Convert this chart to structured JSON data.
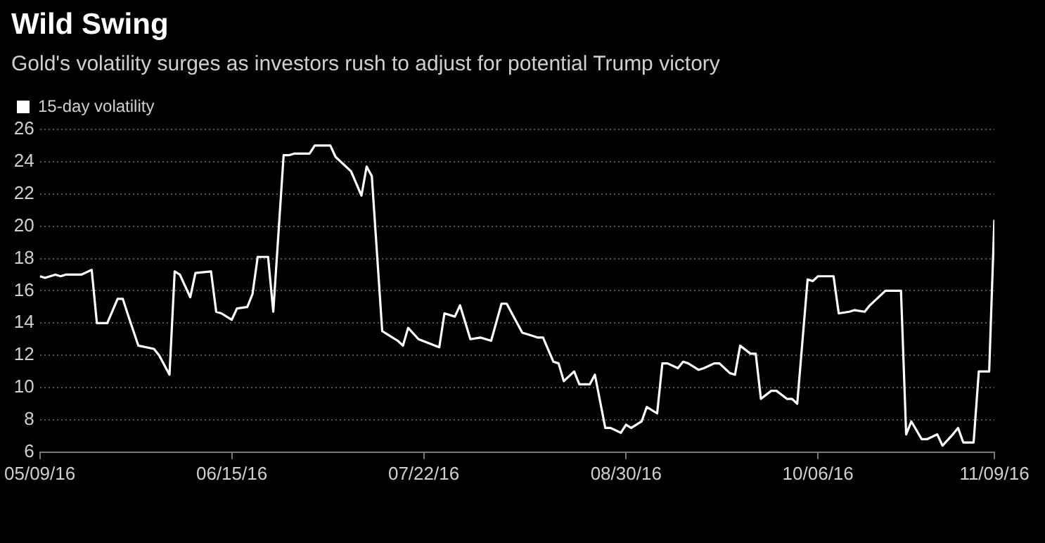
{
  "chart_data": {
    "type": "line",
    "title": "Wild Swing",
    "subtitle": "Gold's volatility surges as investors rush to adjust for potential Trump victory",
    "x": [
      "2016-05-09",
      "2016-05-10",
      "2016-05-12",
      "2016-05-13",
      "2016-05-14",
      "2016-05-17",
      "2016-05-19",
      "2016-05-20",
      "2016-05-22",
      "2016-05-24",
      "2016-05-25",
      "2016-05-26",
      "2016-05-28",
      "2016-05-31",
      "2016-06-01",
      "2016-06-03",
      "2016-06-04",
      "2016-06-05",
      "2016-06-07",
      "2016-06-08",
      "2016-06-11",
      "2016-06-12",
      "2016-06-13",
      "2016-06-15",
      "2016-06-16",
      "2016-06-18",
      "2016-06-19",
      "2016-06-20",
      "2016-06-22",
      "2016-06-23",
      "2016-06-25",
      "2016-06-26",
      "2016-06-27",
      "2016-06-30",
      "2016-07-01",
      "2016-07-04",
      "2016-07-05",
      "2016-07-08",
      "2016-07-10",
      "2016-07-11",
      "2016-07-12",
      "2016-07-14",
      "2016-07-15",
      "2016-07-17",
      "2016-07-18",
      "2016-07-19",
      "2016-07-21",
      "2016-07-25",
      "2016-07-26",
      "2016-07-28",
      "2016-07-29",
      "2016-07-31",
      "2016-08-02",
      "2016-08-04",
      "2016-08-06",
      "2016-08-07",
      "2016-08-10",
      "2016-08-11",
      "2016-08-13",
      "2016-08-14",
      "2016-08-16",
      "2016-08-17",
      "2016-08-18",
      "2016-08-20",
      "2016-08-21",
      "2016-08-23",
      "2016-08-24",
      "2016-08-26",
      "2016-08-27",
      "2016-08-29",
      "2016-08-30",
      "2016-08-31",
      "2016-09-02",
      "2016-09-03",
      "2016-09-05",
      "2016-09-06",
      "2016-09-07",
      "2016-09-09",
      "2016-09-10",
      "2016-09-11",
      "2016-09-13",
      "2016-09-14",
      "2016-09-16",
      "2016-09-17",
      "2016-09-19",
      "2016-09-20",
      "2016-09-21",
      "2016-09-23",
      "2016-09-24",
      "2016-09-25",
      "2016-09-27",
      "2016-09-28",
      "2016-09-30",
      "2016-10-01",
      "2016-10-02",
      "2016-10-04",
      "2016-10-05",
      "2016-10-06",
      "2016-10-09",
      "2016-10-10",
      "2016-10-12",
      "2016-10-13",
      "2016-10-15",
      "2016-10-16",
      "2016-10-19",
      "2016-10-22",
      "2016-10-23",
      "2016-10-24",
      "2016-10-26",
      "2016-10-27",
      "2016-10-29",
      "2016-10-30",
      "2016-11-01",
      "2016-11-02",
      "2016-11-03",
      "2016-11-05",
      "2016-11-06",
      "2016-11-08",
      "2016-11-09"
    ],
    "series": [
      {
        "name": "15-day volatility",
        "color": "#ffffff",
        "values": [
          16.9,
          16.8,
          17.0,
          16.9,
          17.0,
          17.0,
          17.3,
          14.0,
          14.0,
          15.5,
          15.5,
          14.5,
          12.6,
          12.4,
          12.0,
          10.8,
          17.2,
          17.0,
          15.6,
          17.1,
          17.2,
          14.7,
          14.6,
          14.2,
          14.9,
          15.0,
          15.8,
          18.1,
          18.1,
          14.7,
          24.4,
          24.4,
          24.5,
          24.5,
          25.0,
          25.0,
          24.3,
          23.4,
          21.9,
          23.7,
          23.1,
          13.5,
          13.3,
          12.9,
          12.6,
          13.7,
          13.0,
          12.5,
          14.6,
          14.4,
          15.1,
          13.0,
          13.1,
          12.9,
          15.2,
          15.2,
          13.4,
          13.3,
          13.1,
          13.1,
          11.6,
          11.5,
          10.4,
          11.0,
          10.2,
          10.2,
          10.8,
          7.5,
          7.5,
          7.2,
          7.7,
          7.5,
          7.9,
          8.8,
          8.4,
          11.5,
          11.5,
          11.2,
          11.6,
          11.5,
          11.1,
          11.2,
          11.5,
          11.5,
          10.9,
          10.8,
          12.6,
          12.1,
          12.1,
          9.3,
          9.8,
          9.8,
          9.3,
          9.3,
          9.0,
          16.7,
          16.6,
          16.9,
          16.9,
          14.6,
          14.7,
          14.8,
          14.7,
          15.1,
          16.0,
          16.0,
          7.1,
          7.9,
          6.8,
          6.8,
          7.1,
          6.4,
          7.1,
          7.5,
          6.6,
          6.6,
          11.0,
          11.0,
          20.4
        ]
      }
    ],
    "xlim": [
      "2016-05-09",
      "2016-11-09"
    ],
    "xticks": [
      {
        "value": "2016-05-09",
        "label": "05/09/16"
      },
      {
        "value": "2016-06-15",
        "label": "06/15/16"
      },
      {
        "value": "2016-07-22",
        "label": "07/22/16"
      },
      {
        "value": "2016-08-30",
        "label": "08/30/16"
      },
      {
        "value": "2016-10-06",
        "label": "10/06/16"
      },
      {
        "value": "2016-11-09",
        "label": "11/09/16"
      }
    ],
    "ylim": [
      6,
      26
    ],
    "yticks": [
      6,
      8,
      10,
      12,
      14,
      16,
      18,
      20,
      22,
      24,
      26
    ],
    "grid": "y",
    "legend": "top left",
    "marker": "none",
    "line_style": "solid"
  }
}
